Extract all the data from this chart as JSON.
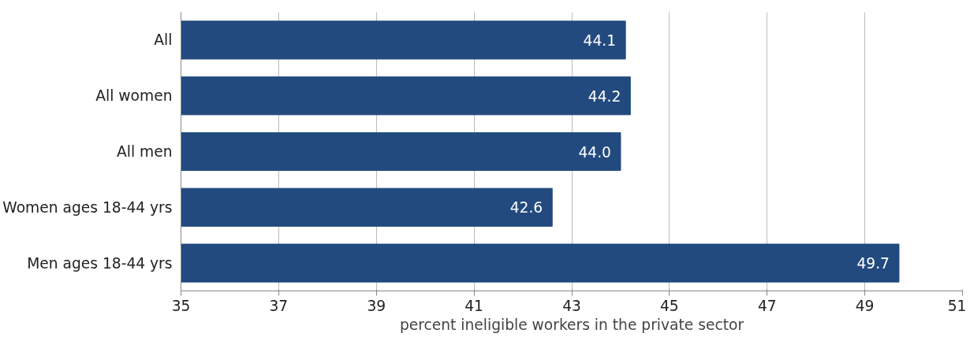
{
  "chart_data": {
    "type": "bar",
    "orientation": "horizontal",
    "categories": [
      "All",
      "All women",
      "All men",
      "Women ages 18-44 yrs",
      "Men ages 18-44 yrs"
    ],
    "values": [
      44.1,
      44.2,
      44.0,
      42.6,
      49.7
    ],
    "color": "#224a7e",
    "xlim": [
      35,
      51
    ],
    "xticks": [
      35,
      37,
      39,
      41,
      43,
      45,
      47,
      49,
      51
    ],
    "xlabel": "percent ineligible workers in the private sector",
    "grid": "x",
    "value_labels": [
      "44.1",
      "44.2",
      "44.0",
      "42.6",
      "49.7"
    ]
  }
}
